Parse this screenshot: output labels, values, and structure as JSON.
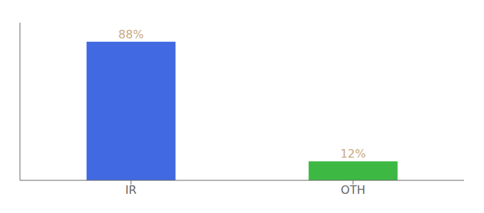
{
  "chart_data": {
    "type": "bar",
    "categories": [
      "IR",
      "OTH"
    ],
    "values": [
      88,
      12
    ],
    "colors": [
      "#4169e1",
      "#3cb843"
    ],
    "ylim": [
      0,
      100
    ],
    "data_labels": true,
    "value_labels": [
      "88%",
      "12%"
    ],
    "tick_labels": "x",
    "grid": false
  }
}
